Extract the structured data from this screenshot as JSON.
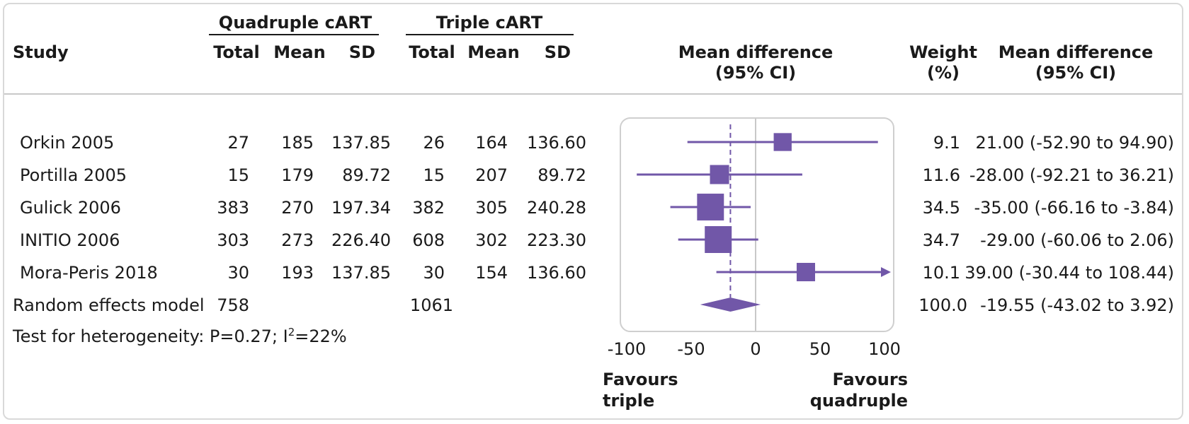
{
  "chart_data": {
    "type": "forest",
    "headers": {
      "study": "Study",
      "group_a": "Quadruple cART",
      "group_b": "Triple cART",
      "total": "Total",
      "mean": "Mean",
      "sd": "SD",
      "effect_line1": "Mean difference",
      "effect_line2": "(95% CI)",
      "weight_line1": "Weight",
      "weight_line2": "(%)",
      "ci_line1": "Mean difference",
      "ci_line2": "(95% CI)"
    },
    "studies": [
      {
        "study": "Orkin 2005",
        "a_total": "27",
        "a_mean": "185",
        "a_sd": "137.85",
        "b_total": "26",
        "b_mean": "164",
        "b_sd": "136.60",
        "md": 21.0,
        "lo": -52.9,
        "hi": 94.9,
        "weight": "9.1",
        "weight_pct": 9.1,
        "ci_text": "21.00 (-52.90 to 94.90)"
      },
      {
        "study": "Portilla 2005",
        "a_total": "15",
        "a_mean": "179",
        "a_sd": "89.72",
        "b_total": "15",
        "b_mean": "207",
        "b_sd": "89.72",
        "md": -28.0,
        "lo": -92.21,
        "hi": 36.21,
        "weight": "11.6",
        "weight_pct": 11.6,
        "ci_text": "-28.00 (-92.21 to 36.21)"
      },
      {
        "study": "Gulick 2006",
        "a_total": "383",
        "a_mean": "270",
        "a_sd": "197.34",
        "b_total": "382",
        "b_mean": "305",
        "b_sd": "240.28",
        "md": -35.0,
        "lo": -66.16,
        "hi": -3.84,
        "weight": "34.5",
        "weight_pct": 34.5,
        "ci_text": "-35.00 (-66.16 to -3.84)"
      },
      {
        "study": "INITIO 2006",
        "a_total": "303",
        "a_mean": "273",
        "a_sd": "226.40",
        "b_total": "608",
        "b_mean": "302",
        "b_sd": "223.30",
        "md": -29.0,
        "lo": -60.06,
        "hi": 2.06,
        "weight": "34.7",
        "weight_pct": 34.7,
        "ci_text": "-29.00 (-60.06 to 2.06)"
      },
      {
        "study": "Mora-Peris 2018",
        "a_total": "30",
        "a_mean": "193",
        "a_sd": "137.85",
        "b_total": "30",
        "b_mean": "154",
        "b_sd": "136.60",
        "md": 39.0,
        "lo": -30.44,
        "hi": 108.44,
        "weight": "10.1",
        "weight_pct": 10.1,
        "ci_text": "39.00 (-30.44 to 108.44)"
      }
    ],
    "pooled": {
      "label": "Random effects model",
      "a_total": "758",
      "b_total": "1061",
      "md": -19.55,
      "lo": -43.02,
      "hi": 3.92,
      "weight": "100.0",
      "ci_text": "-19.55 (-43.02 to 3.92)"
    },
    "heterogeneity": {
      "prefix": "Test for heterogeneity: P=0.27; I",
      "sup": "2",
      "suffix": "=22%"
    },
    "axis": {
      "xlim": [
        -100,
        100
      ],
      "ticks": [
        "-100",
        "-50",
        "0",
        "50",
        "100"
      ],
      "tick_values": [
        -100,
        -50,
        0,
        50,
        100
      ]
    },
    "favours_left": [
      "Favours",
      "triple"
    ],
    "favours_right": [
      "Favours",
      "quadruple"
    ],
    "colors": {
      "marker": "#7157a8",
      "reference": "#c8c8c8",
      "text": "#1a1a1a",
      "rule": "#b5b5b5"
    }
  }
}
